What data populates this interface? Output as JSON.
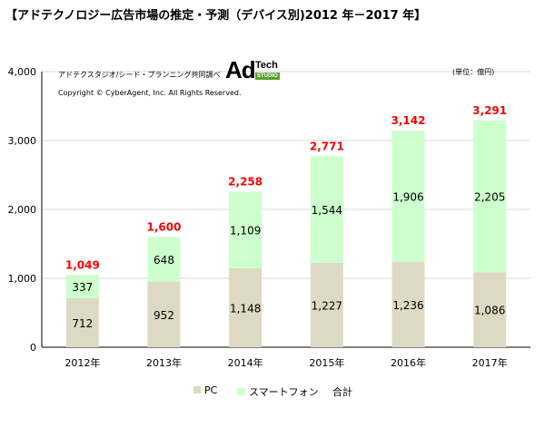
{
  "title": "【アドテクノロジー広告市場の推定・予測（デバイス別)2012 年－2017 年】",
  "credits": {
    "line1": "アドテクスタジオ/シード・プランニング共同調べ",
    "line2": "Copyright © CyberAgent, Inc. All Rights Reserved."
  },
  "logo": {
    "ad": "Ad",
    "tech": "Tech",
    "studio": "STUDIO"
  },
  "unit_note": "(単位：億円)",
  "colors": {
    "pc": "#ddd9c3",
    "smartphone": "#ccffcc",
    "total": "#ff0000",
    "grid": "#d9d9d9"
  },
  "chart_data": {
    "type": "bar",
    "stacked": true,
    "categories": [
      "2012年",
      "2013年",
      "2014年",
      "2015年",
      "2016年",
      "2017年"
    ],
    "series": [
      {
        "name": "PC",
        "values": [
          712,
          952,
          1148,
          1227,
          1236,
          1086
        ]
      },
      {
        "name": "スマートフォン",
        "values": [
          337,
          648,
          1109,
          1544,
          1906,
          2205
        ]
      }
    ],
    "totals": {
      "name": "合計",
      "values": [
        1049,
        1600,
        2258,
        2771,
        3142,
        3291
      ]
    },
    "value_labels": [
      [
        "712",
        "952",
        "1,148",
        "1,227",
        "1,236",
        "1,086"
      ],
      [
        "337",
        "648",
        "1,109",
        "1,544",
        "1,906",
        "2,205"
      ]
    ],
    "total_labels": [
      "1,049",
      "1,600",
      "2,258",
      "2,771",
      "3,142",
      "3,291"
    ],
    "yticks": [
      0,
      1000,
      2000,
      3000,
      4000
    ],
    "ytick_labels": [
      "0",
      "1,000",
      "2,000",
      "3,000",
      "4,000"
    ],
    "ylim": [
      0,
      4000
    ],
    "grid": true,
    "legend_position": "bottom"
  }
}
